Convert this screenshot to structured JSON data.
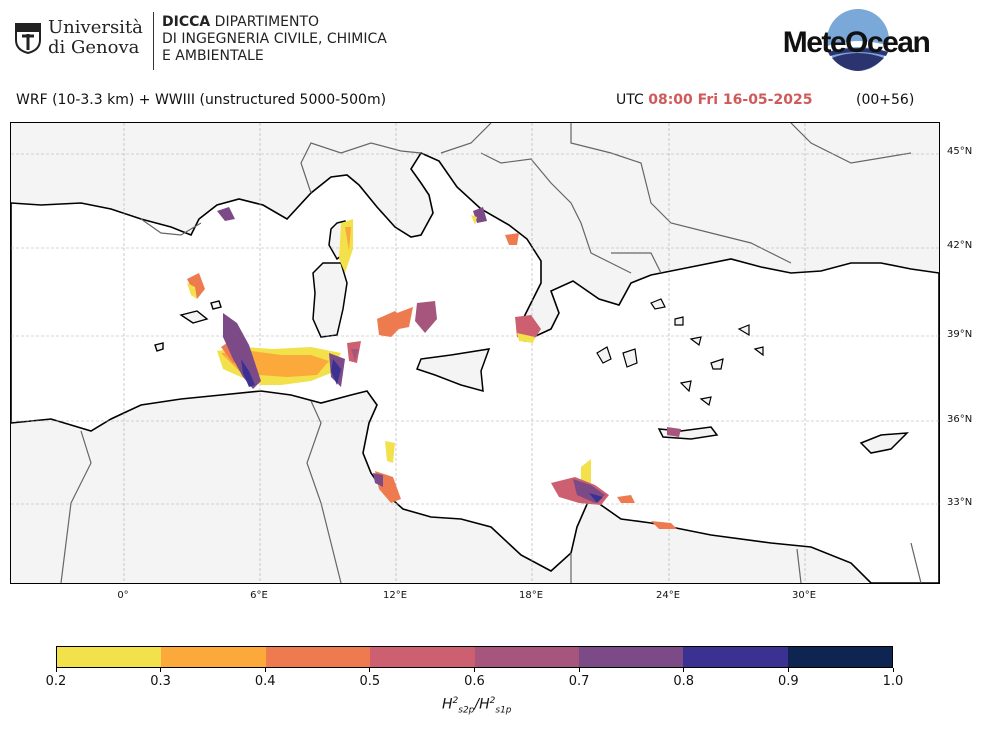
{
  "header": {
    "university_line1": "Università",
    "university_line2": "di Genova",
    "dept_bold": "DICCA",
    "dept_line1_rest": " DIPARTIMENTO",
    "dept_line2": "DI INGEGNERIA CIVILE, CHIMICA",
    "dept_line3": "E AMBIENTALE",
    "brand_logo": "MeteOcean",
    "run_title": "WRF (10-3.3 km) + WWIII (unstructured 5000-500m)",
    "utc_prefix": "UTC",
    "utc_time": "08:00 Fri 16-05-2025",
    "lead_time": "(00+56)"
  },
  "map": {
    "lat_labels": [
      "45°N",
      "42°N",
      "39°N",
      "36°N",
      "33°N"
    ],
    "lon_labels": [
      "0°",
      "6°E",
      "12°E",
      "18°E",
      "24°E",
      "30°E"
    ],
    "coastline_color": "#000000",
    "border_color": "#666666",
    "land_color": "#f4f4f4",
    "sea_color": "#ffffff"
  },
  "colorbar": {
    "ticks": [
      "0.2",
      "0.3",
      "0.4",
      "0.5",
      "0.6",
      "0.7",
      "0.8",
      "0.9",
      "1.0"
    ],
    "colors": [
      "#f2e14a",
      "#fba93b",
      "#ee7b4f",
      "#cc6070",
      "#a6557c",
      "#7d4a88",
      "#3a3193",
      "#0e2552"
    ],
    "label_main": "H",
    "label_sup": "2",
    "label_sub1": "s2p",
    "label_sub2": "s1p"
  }
}
